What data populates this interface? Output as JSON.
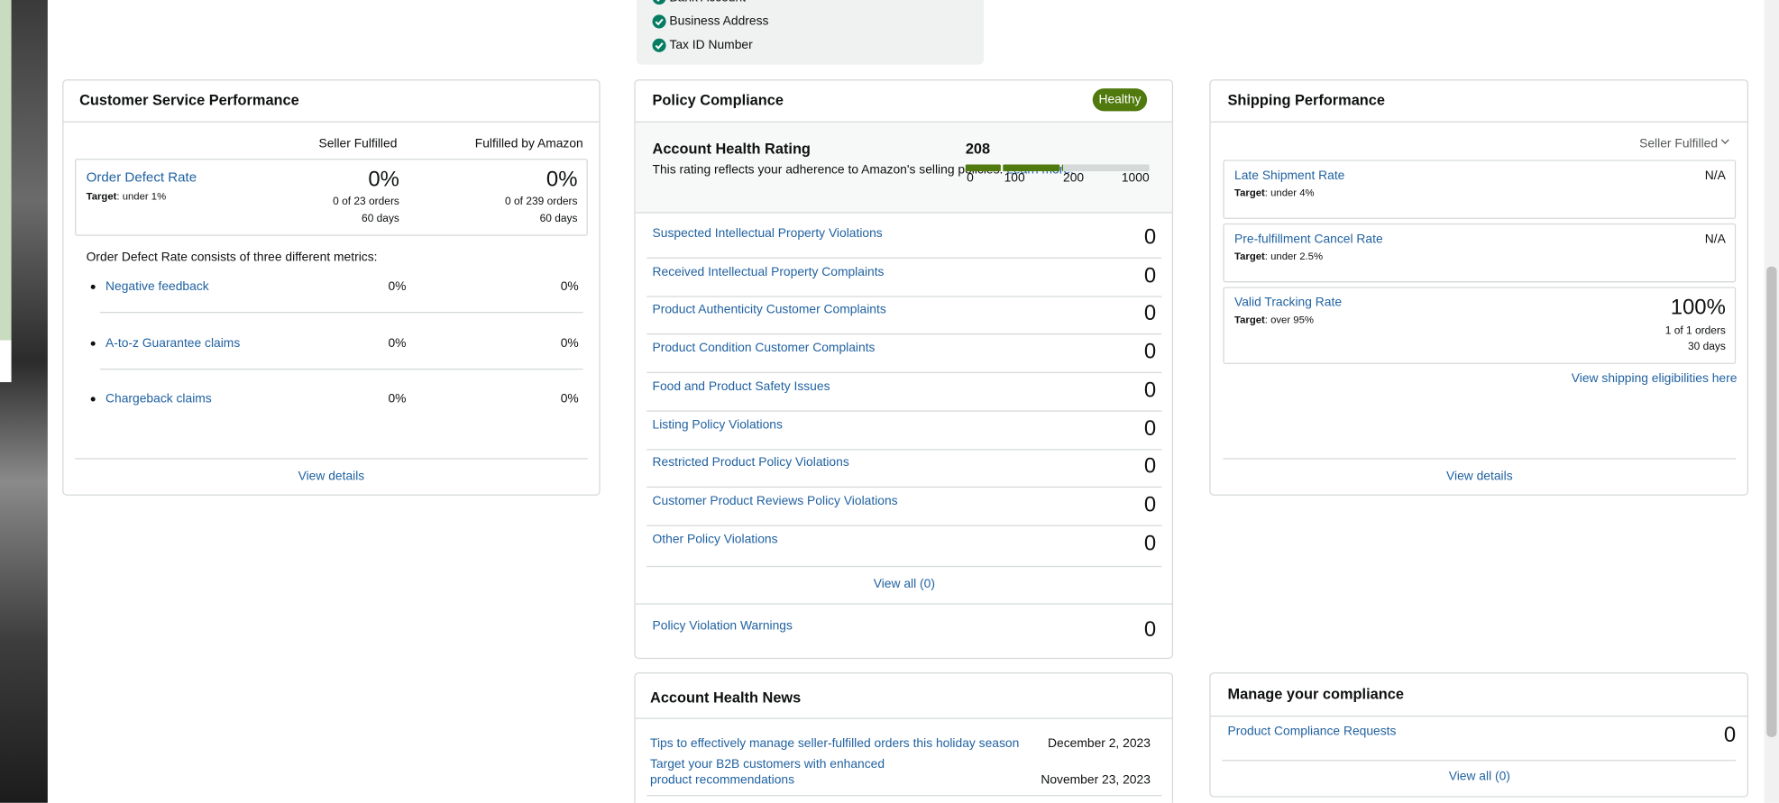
{
  "verification": {
    "items": [
      "Bank Account",
      "Business Address",
      "Tax ID Number"
    ]
  },
  "customer_service": {
    "title": "Customer Service Performance",
    "columns": [
      "Seller Fulfilled",
      "Fulfilled by Amazon"
    ],
    "order_defect_rate": {
      "name": "Order Defect Rate",
      "target_label": "Target",
      "target": ": under 1%",
      "seller": {
        "value": "0%",
        "orders": "0 of 23 orders",
        "period": "60 days"
      },
      "fba": {
        "value": "0%",
        "orders": "0 of 239 orders",
        "period": "60 days"
      }
    },
    "description": "Order Defect Rate consists of three different metrics:",
    "metrics": [
      {
        "name": "Negative feedback",
        "seller": "0%",
        "fba": "0%"
      },
      {
        "name": "A-to-z Guarantee claims",
        "seller": "0%",
        "fba": "0%"
      },
      {
        "name": "Chargeback claims",
        "seller": "0%",
        "fba": "0%"
      }
    ],
    "view_details": "View details"
  },
  "policy_compliance": {
    "title": "Policy Compliance",
    "status": "Healthy",
    "rating": {
      "title": "Account Health Rating",
      "value": 208,
      "description": "This rating reflects your adherence to Amazon's selling policies. ",
      "link": "Learn more.",
      "ticks": [
        0,
        100,
        200,
        1000
      ]
    },
    "violations": [
      {
        "name": "Suspected Intellectual Property Violations",
        "count": 0
      },
      {
        "name": "Received Intellectual Property Complaints",
        "count": 0
      },
      {
        "name": "Product Authenticity Customer Complaints",
        "count": 0
      },
      {
        "name": "Product Condition Customer Complaints",
        "count": 0
      },
      {
        "name": "Food and Product Safety Issues",
        "count": 0
      },
      {
        "name": "Listing Policy Violations",
        "count": 0
      },
      {
        "name": "Restricted Product Policy Violations",
        "count": 0
      },
      {
        "name": "Customer Product Reviews Policy Violations",
        "count": 0
      },
      {
        "name": "Other Policy Violations",
        "count": 0
      }
    ],
    "view_all": "View all (0)",
    "warnings": {
      "name": "Policy Violation Warnings",
      "count": 0
    }
  },
  "shipping": {
    "title": "Shipping Performance",
    "filter": "Seller Fulfilled",
    "metrics": [
      {
        "name": "Late Shipment Rate",
        "target_label": "Target",
        "target": ": under 4%",
        "value": "N/A"
      },
      {
        "name": "Pre-fulfillment Cancel Rate",
        "target_label": "Target",
        "target": ": under 2.5%",
        "value": "N/A"
      },
      {
        "name": "Valid Tracking Rate",
        "target_label": "Target",
        "target": ": over 95%",
        "value": "100%",
        "orders": "1 of 1 orders",
        "period": "30 days"
      }
    ],
    "eligibility_link": "View shipping eligibilities here",
    "view_details": "View details"
  },
  "news": {
    "title": "Account Health News",
    "items": [
      {
        "title": "Tips to effectively manage seller-fulfilled orders this holiday season",
        "date": "December 2, 2023"
      },
      {
        "title": "Target your B2B customers with enhanced product recommendations",
        "date": "November 23, 2023"
      }
    ]
  },
  "manage_compliance": {
    "title": "Manage your compliance",
    "requests": {
      "name": "Product Compliance Requests",
      "count": 0
    },
    "view_all": "View all (0)"
  }
}
